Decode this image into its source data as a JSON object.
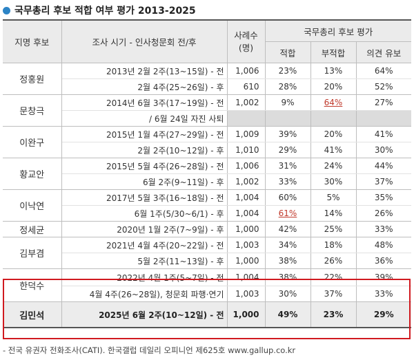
{
  "title": "국무총리 후보 적합 여부 평가 2013-2025",
  "header": {
    "candidate": "지명 후보",
    "period": "조사 시기 - 인사청문회 전/후",
    "sample": "사례수\n(명)",
    "eval_group": "국무총리 후보 평가",
    "fit": "적합",
    "unfit": "부적합",
    "reserve": "의견 유보"
  },
  "groups": [
    {
      "name": "정홍원",
      "rows": [
        {
          "period": "2013년 2월 2주(13~15일) - 전",
          "n": "1,006",
          "fit": "23%",
          "unfit": "13%",
          "reserve": "64%"
        },
        {
          "period": "2월 4주(25~26일) - 후",
          "n": "610",
          "fit": "28%",
          "unfit": "20%",
          "reserve": "52%"
        }
      ]
    },
    {
      "name": "문창극",
      "rows": [
        {
          "period": "2014년 6월 3주(17~19일) - 전",
          "n": "1,002",
          "fit": "9%",
          "unfit": "64%",
          "reserve": "27%"
        },
        {
          "period": "/ 6월 24일 자진 사퇴",
          "n": "",
          "fit": "",
          "unfit": "",
          "reserve": ""
        }
      ]
    },
    {
      "name": "이완구",
      "rows": [
        {
          "period": "2015년 1월 4주(27~29일) - 전",
          "n": "1,009",
          "fit": "39%",
          "unfit": "20%",
          "reserve": "41%"
        },
        {
          "period": "2월 2주(10~12일) - 후",
          "n": "1,010",
          "fit": "29%",
          "unfit": "41%",
          "reserve": "30%"
        }
      ]
    },
    {
      "name": "황교안",
      "rows": [
        {
          "period": "2015년 5월 4주(26~28일) - 전",
          "n": "1,006",
          "fit": "31%",
          "unfit": "24%",
          "reserve": "44%"
        },
        {
          "period": "6월 2주(9~11일) - 후",
          "n": "1,002",
          "fit": "33%",
          "unfit": "30%",
          "reserve": "37%"
        }
      ]
    },
    {
      "name": "이낙연",
      "rows": [
        {
          "period": "2017년 5월 3주(16~18일) - 전",
          "n": "1,004",
          "fit": "60%",
          "unfit": "5%",
          "reserve": "35%"
        },
        {
          "period": "6월 1주(5/30~6/1) - 후",
          "n": "1,004",
          "fit": "61%",
          "unfit": "14%",
          "reserve": "26%"
        }
      ]
    },
    {
      "name": "정세균",
      "rows": [
        {
          "period": "2020년 1월 2주(7~9일) - 후",
          "n": "1,000",
          "fit": "42%",
          "unfit": "25%",
          "reserve": "33%"
        }
      ]
    },
    {
      "name": "김부겸",
      "rows": [
        {
          "period": "2021년 4월 4주(20~22일) - 전",
          "n": "1,003",
          "fit": "34%",
          "unfit": "18%",
          "reserve": "48%"
        },
        {
          "period": "5월 2주(11~13일) - 후",
          "n": "1,000",
          "fit": "38%",
          "unfit": "26%",
          "reserve": "36%"
        }
      ]
    },
    {
      "name": "한덕수",
      "rows": [
        {
          "period": "2022년 4월 1주(5~7일) - 전",
          "n": "1,004",
          "fit": "38%",
          "unfit": "22%",
          "reserve": "39%"
        },
        {
          "period": "4월 4주(26~28일), 청문회 파행·연기",
          "n": "1,003",
          "fit": "30%",
          "unfit": "37%",
          "reserve": "33%"
        }
      ]
    },
    {
      "name": "김민석",
      "rows": [
        {
          "period": "2025년 6월 2주(10~12일) - 전",
          "n": "1,000",
          "fit": "49%",
          "unfit": "23%",
          "reserve": "29%"
        }
      ]
    }
  ],
  "footnote": "- 전국 유권자 전화조사(CATI). 한국갤럽 데일리 오피니언 제625호 www.gallup.co.kr",
  "colors": {
    "accent_dot": "#2c84c6",
    "highlight_box": "#d0191f",
    "underline_red": "#c0392b",
    "header_bg": "#ebebeb"
  }
}
